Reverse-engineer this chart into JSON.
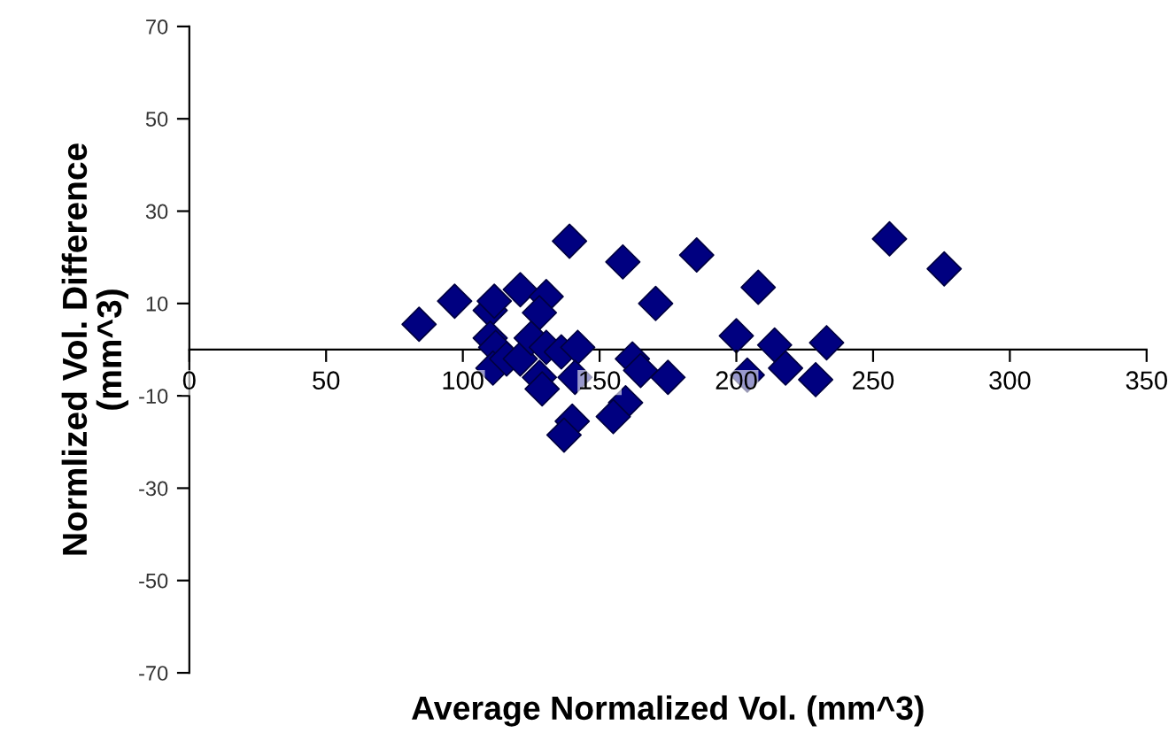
{
  "chart_data": {
    "type": "scatter",
    "xlabel": "Average Normalized Vol. (mm^3)",
    "ylabel": "Normlized Vol. Difference\n(mm^3)",
    "xlim": [
      0,
      350
    ],
    "xticks": [
      0,
      50,
      100,
      150,
      200,
      250,
      300,
      350
    ],
    "ylim": [
      -70,
      70
    ],
    "yticks": [
      -70,
      -50,
      -30,
      -10,
      10,
      30,
      50,
      70
    ],
    "grid": false,
    "marker": "diamond",
    "series": [
      {
        "color": "#000080",
        "x": [
          84,
          97,
          110,
          111.5,
          121,
          130.5,
          128,
          110,
          112,
          111,
          116,
          121,
          125,
          130.5,
          128,
          129,
          136,
          142,
          141,
          139,
          158.5,
          185.5,
          170.5,
          162,
          165,
          175,
          159.5,
          155,
          140,
          137,
          200,
          204,
          208,
          214,
          218,
          229,
          233,
          256,
          276
        ],
        "values": [
          5.5,
          10.5,
          8.5,
          10.5,
          13,
          11.5,
          8,
          2.5,
          0.5,
          -4,
          -2,
          -2,
          2.5,
          0.5,
          -6,
          -8.5,
          -0.5,
          0.5,
          -6,
          23.5,
          19,
          20.5,
          10,
          -2,
          -4.5,
          -6,
          -11.5,
          -14.5,
          -15.5,
          -18.5,
          3,
          -5.5,
          13.5,
          1,
          -4,
          -6.5,
          1.5,
          24,
          17.5
        ]
      }
    ]
  }
}
